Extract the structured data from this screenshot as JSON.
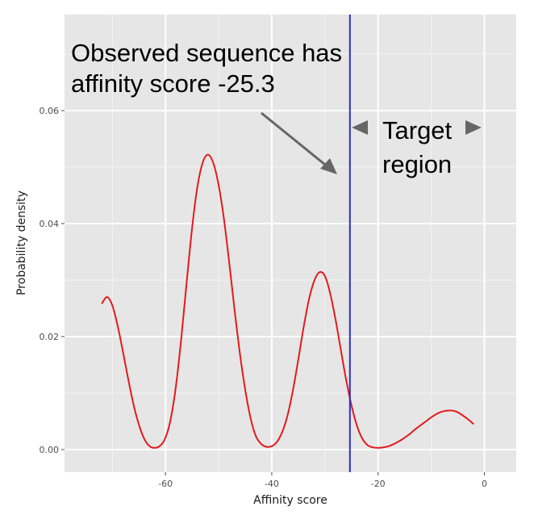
{
  "chart_data": {
    "type": "line",
    "xlabel": "Affinity score",
    "ylabel": "Probability density",
    "xlim": [
      -79,
      6
    ],
    "ylim": [
      -0.004,
      0.077
    ],
    "x_ticks": [
      -60,
      -40,
      -20,
      0
    ],
    "x_tick_labels": [
      "-60",
      "-40",
      "-20",
      "0"
    ],
    "y_ticks": [
      0.0,
      0.02,
      0.04,
      0.06
    ],
    "y_tick_labels": [
      "0.00",
      "0.02",
      "0.04",
      "0.06"
    ],
    "grid": true,
    "series": [
      {
        "color": "#e41a1c",
        "x": [
          -72,
          -71,
          -70,
          -69,
          -68,
          -67,
          -66,
          -65,
          -64,
          -63,
          -62,
          -61,
          -60,
          -59,
          -58,
          -57,
          -56,
          -55,
          -54,
          -53,
          -52,
          -51,
          -50,
          -49,
          -48,
          -47,
          -46,
          -45,
          -44,
          -43,
          -42,
          -41,
          -40,
          -39,
          -38,
          -37,
          -36,
          -35,
          -34,
          -33,
          -32,
          -31,
          -30,
          -29,
          -28,
          -27,
          -26,
          -25,
          -24,
          -23,
          -22,
          -21,
          -20,
          -19,
          -18,
          -17,
          -16,
          -15,
          -14,
          -13,
          -12,
          -11,
          -10,
          -9,
          -8,
          -7,
          -6,
          -5,
          -4,
          -3,
          -2
        ],
        "y": [
          0.0258,
          0.027,
          0.0255,
          0.0219,
          0.0173,
          0.0124,
          0.0079,
          0.0044,
          0.0019,
          0.0006,
          0.0003,
          0.0007,
          0.0021,
          0.0055,
          0.0115,
          0.02,
          0.0298,
          0.0392,
          0.0465,
          0.0508,
          0.0522,
          0.0507,
          0.0468,
          0.0408,
          0.033,
          0.0247,
          0.017,
          0.0106,
          0.0056,
          0.0024,
          0.001,
          0.0005,
          0.0006,
          0.0014,
          0.0032,
          0.0062,
          0.0106,
          0.016,
          0.0217,
          0.0266,
          0.0299,
          0.0314,
          0.0307,
          0.0276,
          0.023,
          0.0176,
          0.0123,
          0.0078,
          0.0043,
          0.002,
          0.0008,
          0.0004,
          0.0003,
          0.0004,
          0.0006,
          0.001,
          0.0015,
          0.0021,
          0.0028,
          0.0036,
          0.0043,
          0.005,
          0.0057,
          0.0063,
          0.0067,
          0.0069,
          0.0069,
          0.0066,
          0.006,
          0.0053,
          0.0045
        ]
      }
    ],
    "vline": {
      "x": -25.3,
      "color": "#2c2cc8"
    },
    "annotations": {
      "observed_line1": "Observed sequence has",
      "observed_line2": "affinity score -25.3",
      "target_line1": "Target",
      "target_line2": "region"
    }
  },
  "colors": {
    "panel_bg": "#e6e6e6",
    "grid_major": "#ffffff",
    "arrow": "#666666"
  }
}
